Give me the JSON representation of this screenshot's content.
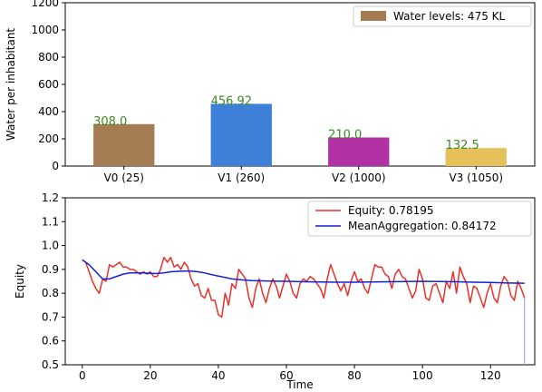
{
  "chart_data": [
    {
      "type": "bar",
      "categories": [
        "V0 (25)",
        "V1 (260)",
        "V2 (1000)",
        "V3 (1050)"
      ],
      "values": [
        308.0,
        456.92,
        210.0,
        132.5
      ],
      "value_labels": [
        "308.0",
        "456.92",
        "210.0",
        "132.5"
      ],
      "bar_colors": [
        "#a67c52",
        "#3d7fd9",
        "#b232a6",
        "#e6c05a"
      ],
      "value_label_color": "#3a8a23",
      "ylabel": "Water per inhabitant",
      "ylim": [
        0,
        1200
      ],
      "yticks": [
        0,
        200,
        400,
        600,
        800,
        1000,
        1200
      ],
      "legend": {
        "placement": "top-right",
        "entries": [
          {
            "label": "Water levels: 475 KL",
            "color": "#a67c52"
          }
        ]
      },
      "grid": false
    },
    {
      "type": "line",
      "xlabel": "Time",
      "ylabel": "Equity",
      "xlim": [
        -5,
        133
      ],
      "ylim": [
        0.5,
        1.2
      ],
      "xticks": [
        0,
        20,
        40,
        60,
        80,
        100,
        120
      ],
      "yticks": [
        0.5,
        0.6,
        0.7,
        0.8,
        0.9,
        1.0,
        1.1,
        1.2
      ],
      "ytick_labels": [
        "0.5",
        "0.6",
        "0.7",
        "0.8",
        "0.9",
        "1.0",
        "1.1",
        "1.2"
      ],
      "legend": {
        "placement": "top-right"
      },
      "grid": false,
      "series": [
        {
          "name": "Equity: 0.78195",
          "color": "#e8312a",
          "x": [
            0,
            1,
            2,
            3,
            4,
            5,
            6,
            7,
            8,
            9,
            10,
            11,
            12,
            13,
            14,
            15,
            16,
            17,
            18,
            19,
            20,
            21,
            22,
            23,
            24,
            25,
            26,
            27,
            28,
            29,
            30,
            31,
            32,
            33,
            34,
            35,
            36,
            37,
            38,
            39,
            40,
            41,
            42,
            43,
            44,
            45,
            46,
            47,
            48,
            49,
            50,
            51,
            52,
            53,
            54,
            55,
            56,
            57,
            58,
            59,
            60,
            61,
            62,
            63,
            64,
            65,
            66,
            67,
            68,
            69,
            70,
            71,
            72,
            73,
            74,
            75,
            76,
            77,
            78,
            79,
            80,
            81,
            82,
            83,
            84,
            85,
            86,
            87,
            88,
            89,
            90,
            91,
            92,
            93,
            94,
            95,
            96,
            97,
            98,
            99,
            100,
            101,
            102,
            103,
            104,
            105,
            106,
            107,
            108,
            109,
            110,
            111,
            112,
            113,
            114,
            115,
            116,
            117,
            118,
            119,
            120,
            121,
            122,
            123,
            124,
            125,
            126,
            127,
            128,
            129,
            130
          ],
          "values": [
            0.94,
            0.93,
            0.89,
            0.85,
            0.82,
            0.8,
            0.86,
            0.85,
            0.92,
            0.91,
            0.92,
            0.93,
            0.91,
            0.91,
            0.9,
            0.9,
            0.89,
            0.88,
            0.89,
            0.88,
            0.89,
            0.87,
            0.87,
            0.9,
            0.95,
            0.93,
            0.95,
            0.91,
            0.92,
            0.9,
            0.93,
            0.91,
            0.86,
            0.83,
            0.84,
            0.79,
            0.78,
            0.82,
            0.77,
            0.77,
            0.71,
            0.7,
            0.8,
            0.75,
            0.84,
            0.82,
            0.9,
            0.88,
            0.86,
            0.78,
            0.74,
            0.82,
            0.86,
            0.8,
            0.76,
            0.82,
            0.86,
            0.83,
            0.78,
            0.83,
            0.88,
            0.85,
            0.8,
            0.78,
            0.84,
            0.86,
            0.85,
            0.87,
            0.86,
            0.84,
            0.82,
            0.78,
            0.86,
            0.92,
            0.88,
            0.84,
            0.81,
            0.84,
            0.79,
            0.85,
            0.89,
            0.85,
            0.86,
            0.82,
            0.8,
            0.86,
            0.92,
            0.91,
            0.91,
            0.88,
            0.87,
            0.82,
            0.88,
            0.9,
            0.87,
            0.86,
            0.82,
            0.78,
            0.81,
            0.9,
            0.86,
            0.78,
            0.77,
            0.83,
            0.84,
            0.8,
            0.76,
            0.85,
            0.82,
            0.89,
            0.8,
            0.91,
            0.87,
            0.84,
            0.76,
            0.83,
            0.82,
            0.78,
            0.74,
            0.8,
            0.84,
            0.78,
            0.76,
            0.83,
            0.87,
            0.85,
            0.79,
            0.77,
            0.85,
            0.82,
            0.78
          ]
        },
        {
          "name": "MeanAggregation: 0.84172",
          "color": "#1422d6",
          "x": [
            0,
            2,
            4,
            6,
            8,
            10,
            12,
            14,
            16,
            18,
            20,
            22,
            24,
            26,
            28,
            30,
            32,
            34,
            36,
            38,
            40,
            42,
            44,
            46,
            48,
            50,
            55,
            60,
            65,
            70,
            75,
            80,
            85,
            90,
            95,
            100,
            105,
            110,
            115,
            120,
            125,
            130
          ],
          "values": [
            0.94,
            0.92,
            0.89,
            0.86,
            0.86,
            0.87,
            0.88,
            0.885,
            0.885,
            0.885,
            0.883,
            0.883,
            0.885,
            0.89,
            0.892,
            0.893,
            0.893,
            0.89,
            0.885,
            0.878,
            0.872,
            0.866,
            0.86,
            0.857,
            0.855,
            0.853,
            0.851,
            0.85,
            0.848,
            0.847,
            0.846,
            0.846,
            0.847,
            0.848,
            0.849,
            0.85,
            0.849,
            0.848,
            0.846,
            0.845,
            0.843,
            0.842
          ]
        }
      ],
      "marker_line": {
        "x": 130,
        "color": "#9a9aee"
      }
    }
  ]
}
